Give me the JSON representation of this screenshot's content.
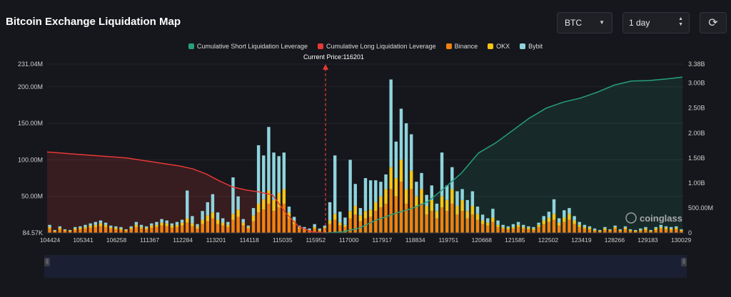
{
  "title": "Bitcoin Exchange Liquidation Map",
  "controls": {
    "coin": "BTC",
    "range": "1 day",
    "refresh_icon": "refresh-icon"
  },
  "legend": [
    {
      "label": "Cumulative Short Liquidation Leverage",
      "color": "#26a17b"
    },
    {
      "label": "Cumulative Long Liquidation Leverage",
      "color": "#e53935"
    },
    {
      "label": "Binance",
      "color": "#f0820f"
    },
    {
      "label": "OKX",
      "color": "#f5c518"
    },
    {
      "label": "Bybit",
      "color": "#8fd4dd"
    }
  ],
  "current_price_label": "Current Price:116201",
  "watermark": "coinglass",
  "chart_data": {
    "type": "bar",
    "current_price": 116201,
    "x_ticks": [
      "104424",
      "105341",
      "106258",
      "111367",
      "112284",
      "113201",
      "114118",
      "115035",
      "115952",
      "117000",
      "117917",
      "118834",
      "119751",
      "120668",
      "121585",
      "122502",
      "123419",
      "128266",
      "129183",
      "130029"
    ],
    "y_left_ticks": [
      "231.04M",
      "200.00M",
      "150.00M",
      "100.00M",
      "50.00M",
      "84.57K"
    ],
    "y_right_ticks": [
      "3.38B",
      "3.00B",
      "2.50B",
      "2.00B",
      "1.50B",
      "1.00B",
      "500.00M",
      "0"
    ],
    "y_left_lim": [
      0,
      231.04
    ],
    "y_right_lim": [
      0,
      3.38
    ],
    "bars_millions": [
      [
        6,
        2,
        3
      ],
      [
        2,
        1,
        1
      ],
      [
        5,
        2,
        2
      ],
      [
        3,
        1,
        1
      ],
      [
        2,
        1,
        1
      ],
      [
        4,
        2,
        2
      ],
      [
        5,
        2,
        2
      ],
      [
        6,
        2,
        3
      ],
      [
        7,
        3,
        3
      ],
      [
        8,
        3,
        4
      ],
      [
        9,
        4,
        4
      ],
      [
        8,
        3,
        3
      ],
      [
        6,
        2,
        2
      ],
      [
        5,
        2,
        2
      ],
      [
        4,
        2,
        2
      ],
      [
        3,
        1,
        1
      ],
      [
        5,
        2,
        2
      ],
      [
        8,
        3,
        4
      ],
      [
        6,
        2,
        3
      ],
      [
        5,
        2,
        2
      ],
      [
        7,
        3,
        3
      ],
      [
        8,
        3,
        4
      ],
      [
        10,
        4,
        5
      ],
      [
        9,
        4,
        4
      ],
      [
        7,
        3,
        3
      ],
      [
        8,
        3,
        4
      ],
      [
        10,
        4,
        4
      ],
      [
        14,
        6,
        38
      ],
      [
        9,
        4,
        10
      ],
      [
        6,
        3,
        3
      ],
      [
        12,
        6,
        12
      ],
      [
        16,
        8,
        18
      ],
      [
        20,
        8,
        25
      ],
      [
        12,
        6,
        10
      ],
      [
        10,
        4,
        6
      ],
      [
        8,
        3,
        4
      ],
      [
        18,
        8,
        50
      ],
      [
        22,
        10,
        18
      ],
      [
        10,
        4,
        5
      ],
      [
        6,
        2,
        2
      ],
      [
        16,
        8,
        10
      ],
      [
        28,
        12,
        80
      ],
      [
        32,
        14,
        60
      ],
      [
        40,
        18,
        87
      ],
      [
        30,
        15,
        65
      ],
      [
        35,
        20,
        50
      ],
      [
        40,
        20,
        50
      ],
      [
        20,
        8,
        8
      ],
      [
        12,
        5,
        5
      ],
      [
        6,
        2,
        2
      ],
      [
        4,
        2,
        2
      ],
      [
        3,
        1,
        2
      ],
      [
        6,
        2,
        4
      ],
      [
        3,
        1,
        2
      ],
      [
        6,
        2,
        2
      ],
      [
        12,
        5,
        25
      ],
      [
        18,
        8,
        80
      ],
      [
        10,
        4,
        15
      ],
      [
        8,
        3,
        10
      ],
      [
        20,
        10,
        70
      ],
      [
        25,
        12,
        30
      ],
      [
        16,
        8,
        10
      ],
      [
        20,
        10,
        45
      ],
      [
        22,
        10,
        40
      ],
      [
        30,
        12,
        30
      ],
      [
        35,
        15,
        20
      ],
      [
        40,
        20,
        20
      ],
      [
        60,
        30,
        120
      ],
      [
        50,
        25,
        50
      ],
      [
        70,
        30,
        70
      ],
      [
        40,
        20,
        90
      ],
      [
        60,
        25,
        50
      ],
      [
        35,
        15,
        20
      ],
      [
        40,
        20,
        22
      ],
      [
        25,
        12,
        15
      ],
      [
        30,
        15,
        20
      ],
      [
        20,
        10,
        10
      ],
      [
        35,
        15,
        60
      ],
      [
        30,
        15,
        20
      ],
      [
        40,
        20,
        30
      ],
      [
        25,
        12,
        20
      ],
      [
        30,
        15,
        15
      ],
      [
        20,
        10,
        15
      ],
      [
        25,
        12,
        20
      ],
      [
        18,
        8,
        10
      ],
      [
        12,
        5,
        8
      ],
      [
        10,
        4,
        6
      ],
      [
        15,
        6,
        12
      ],
      [
        8,
        3,
        6
      ],
      [
        6,
        2,
        3
      ],
      [
        5,
        2,
        2
      ],
      [
        6,
        2,
        4
      ],
      [
        8,
        3,
        4
      ],
      [
        6,
        2,
        3
      ],
      [
        5,
        2,
        2
      ],
      [
        4,
        2,
        2
      ],
      [
        8,
        3,
        3
      ],
      [
        12,
        5,
        6
      ],
      [
        15,
        6,
        8
      ],
      [
        18,
        8,
        20
      ],
      [
        10,
        4,
        6
      ],
      [
        15,
        6,
        10
      ],
      [
        18,
        8,
        8
      ],
      [
        12,
        5,
        6
      ],
      [
        8,
        3,
        4
      ],
      [
        6,
        2,
        3
      ],
      [
        5,
        2,
        2
      ],
      [
        3,
        1,
        2
      ],
      [
        2,
        1,
        1
      ],
      [
        4,
        2,
        2
      ],
      [
        3,
        1,
        1
      ],
      [
        6,
        2,
        2
      ],
      [
        3,
        1,
        1
      ],
      [
        5,
        2,
        2
      ],
      [
        3,
        1,
        1
      ],
      [
        2,
        1,
        1
      ],
      [
        3,
        1,
        2
      ],
      [
        4,
        2,
        2
      ],
      [
        2,
        1,
        1
      ],
      [
        4,
        2,
        2
      ],
      [
        6,
        2,
        3
      ],
      [
        5,
        2,
        2
      ],
      [
        4,
        2,
        2
      ],
      [
        5,
        2,
        2
      ],
      [
        3,
        1,
        1
      ]
    ],
    "long_cumulative_billions": [
      1.62,
      1.6,
      1.58,
      1.56,
      1.54,
      1.52,
      1.5,
      1.46,
      1.42,
      1.38,
      1.34,
      1.28,
      1.18,
      1.04,
      0.92,
      0.86,
      0.82,
      0.76,
      0.4,
      0.12,
      0.02,
      0.0
    ],
    "short_cumulative_billions": [
      0.0,
      0.02,
      0.1,
      0.26,
      0.38,
      0.48,
      0.62,
      0.9,
      1.2,
      1.6,
      1.8,
      2.05,
      2.3,
      2.5,
      2.62,
      2.7,
      2.82,
      2.96,
      3.04,
      3.05,
      3.08,
      3.12
    ]
  }
}
